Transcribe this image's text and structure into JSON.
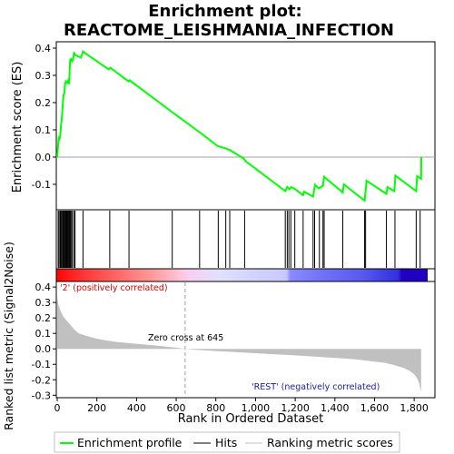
{
  "chart_data": {
    "type": "line",
    "title": "Enrichment plot:",
    "subtitle": "REACTOME_LEISHMANIA_INFECTION",
    "es_panel": {
      "ylabel": "Enrichment score (ES)",
      "ylim": [
        -0.19,
        0.42
      ],
      "yticks": [
        -0.1,
        0.0,
        0.1,
        0.2,
        0.3,
        0.4
      ],
      "ytick_labels": [
        "-0.1",
        "0.0",
        "0.1",
        "0.2",
        "0.3",
        "0.4"
      ],
      "series": [
        {
          "name": "Enrichment profile",
          "color": "#00ff00",
          "x": [
            0,
            8,
            12,
            15,
            20,
            22,
            28,
            32,
            36,
            40,
            43,
            50,
            55,
            60,
            65,
            70,
            75,
            80,
            85,
            90,
            120,
            130,
            140,
            200,
            260,
            268,
            360,
            365,
            580,
            720,
            810,
            850,
            870,
            940,
            950,
            1150,
            1160,
            1170,
            1180,
            1200,
            1240,
            1245,
            1290,
            1300,
            1320,
            1340,
            1345,
            1440,
            1445,
            1550,
            1555,
            1560,
            1660,
            1665,
            1700,
            1705,
            1810,
            1815,
            1835,
            1836
          ],
          "y": [
            0.0,
            0.075,
            0.068,
            0.078,
            0.125,
            0.13,
            0.19,
            0.228,
            0.235,
            0.27,
            0.278,
            0.272,
            0.28,
            0.268,
            0.355,
            0.36,
            0.352,
            0.358,
            0.385,
            0.375,
            0.365,
            0.388,
            0.382,
            0.352,
            0.322,
            0.328,
            0.278,
            0.282,
            0.165,
            0.09,
            0.04,
            0.032,
            0.026,
            -0.005,
            -0.015,
            -0.125,
            -0.11,
            -0.118,
            -0.11,
            -0.118,
            -0.14,
            -0.127,
            -0.145,
            -0.102,
            -0.115,
            -0.105,
            -0.072,
            -0.13,
            -0.1,
            -0.16,
            -0.125,
            -0.087,
            -0.135,
            -0.11,
            -0.125,
            -0.068,
            -0.125,
            -0.07,
            -0.08,
            0.0
          ]
        }
      ]
    },
    "hits": {
      "name": "Hits",
      "x": [
        5,
        10,
        16,
        21,
        26,
        30,
        34,
        38,
        42,
        46,
        50,
        54,
        58,
        62,
        66,
        70,
        76,
        84,
        90,
        130,
        265,
        362,
        580,
        718,
        812,
        850,
        870,
        945,
        1150,
        1160,
        1168,
        1178,
        1198,
        1240,
        1290,
        1298,
        1322,
        1340,
        1346,
        1440,
        1550,
        1555,
        1660,
        1703,
        1810,
        1830
      ]
    },
    "metric_panel": {
      "ylabel": "Ranked list metric (Signal2Noise)",
      "xlabel": "Rank in Ordered Dataset",
      "xlim": [
        0,
        1900
      ],
      "ylim": [
        -0.31,
        0.43
      ],
      "yticks": [
        -0.3,
        -0.2,
        -0.1,
        0.0,
        0.1,
        0.2,
        0.3,
        0.4
      ],
      "ytick_labels": [
        "-0.3",
        "-0.2",
        "-0.1",
        "0.0",
        "0.1",
        "0.2",
        "0.3",
        "0.4"
      ],
      "xticks": [
        0,
        200,
        400,
        600,
        800,
        1000,
        1200,
        1400,
        1600,
        1800
      ],
      "xtick_labels": [
        "0",
        "200",
        "400",
        "600",
        "800",
        "1,000",
        "1,200",
        "1,400",
        "1,600",
        "1,800"
      ],
      "series": [
        {
          "name": "Ranking metric scores",
          "color": "#c0c0c0",
          "x": [
            0,
            5,
            15,
            30,
            50,
            70,
            90,
            110,
            150,
            200,
            250,
            300,
            400,
            500,
            600,
            645,
            700,
            800,
            900,
            1000,
            1100,
            1200,
            1300,
            1400,
            1500,
            1600,
            1650,
            1700,
            1750,
            1780,
            1800,
            1815,
            1825,
            1835
          ],
          "y": [
            0.34,
            0.29,
            0.25,
            0.21,
            0.18,
            0.15,
            0.12,
            0.1,
            0.083,
            0.066,
            0.054,
            0.045,
            0.033,
            0.021,
            0.008,
            0.0,
            -0.006,
            -0.014,
            -0.021,
            -0.028,
            -0.035,
            -0.042,
            -0.05,
            -0.058,
            -0.067,
            -0.082,
            -0.09,
            -0.105,
            -0.125,
            -0.145,
            -0.165,
            -0.19,
            -0.22,
            -0.28
          ]
        }
      ],
      "zero_cross": 645,
      "annotations": {
        "positive": "'2' (positively correlated)",
        "zero_cross": "Zero cross at 645",
        "negative": "'REST' (negatively correlated)"
      }
    },
    "legend": [
      {
        "label": "Enrichment profile",
        "color": "#00ff00"
      },
      {
        "label": "Hits",
        "color": "#000000"
      },
      {
        "label": "Ranking metric scores",
        "color": "#c0c0c0"
      }
    ]
  }
}
